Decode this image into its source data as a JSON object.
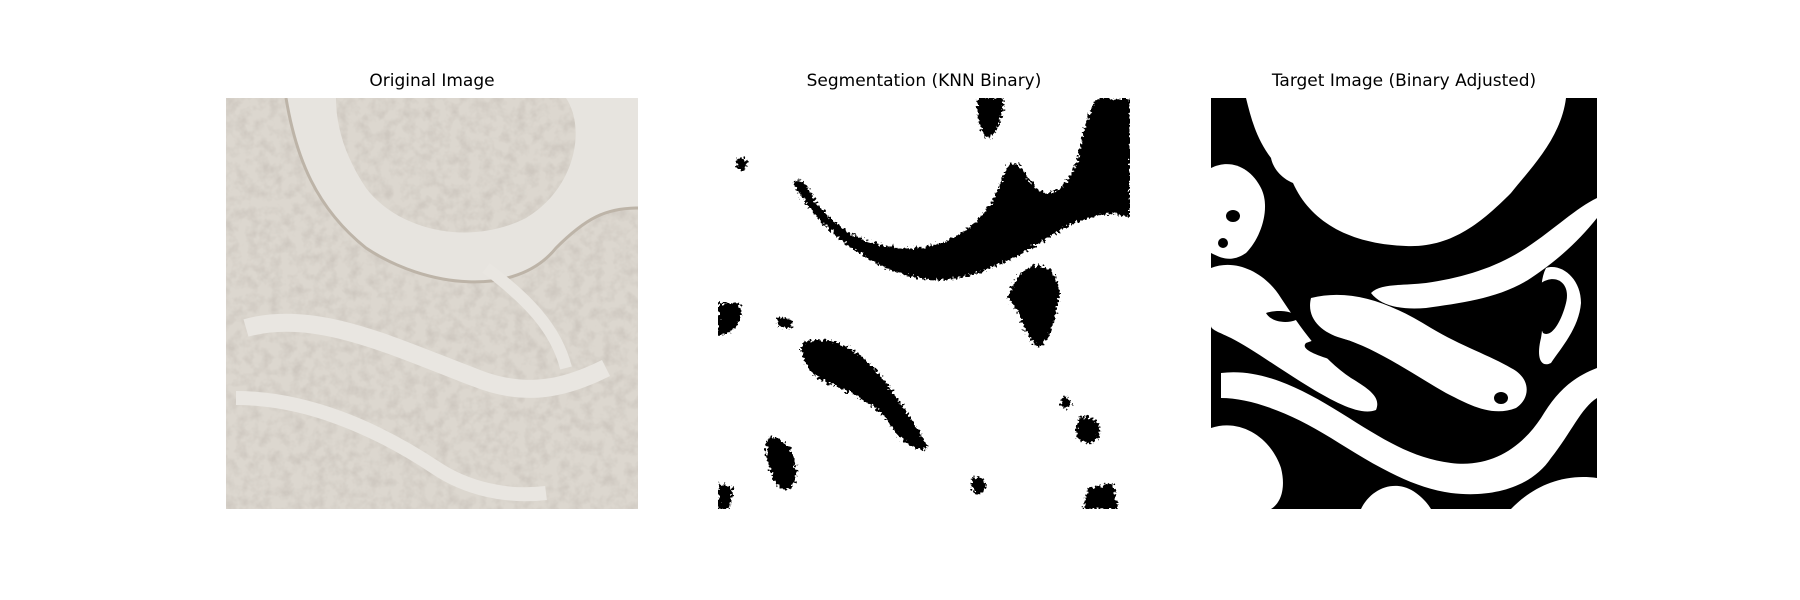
{
  "panels": [
    {
      "title": "Original Image",
      "icon": "microscopy-image"
    },
    {
      "title": "Segmentation (KNN Binary)",
      "icon": "binary-segmentation-image"
    },
    {
      "title": "Target Image (Binary Adjusted)",
      "icon": "binary-mask-image"
    }
  ],
  "colors": {
    "tissue_background": "#e7e4df",
    "tissue_texture": "#c9c2b8",
    "mask_foreground": "#000000",
    "mask_background": "#ffffff"
  }
}
